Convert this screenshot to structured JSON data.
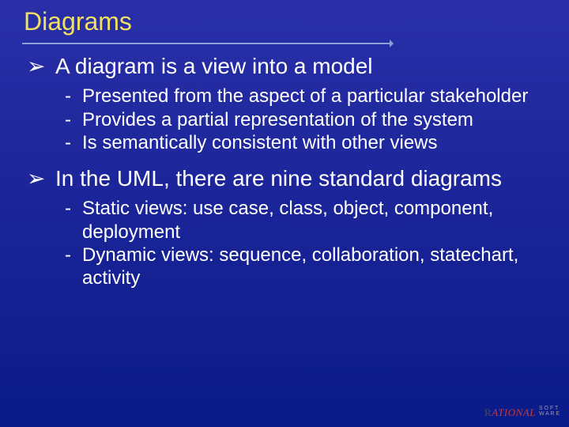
{
  "colors": {
    "bg_top": "#2a2fa8",
    "bg_bottom": "#0a1a88",
    "title": "#f2e060",
    "rule": "#8e9fd8",
    "text": "#ffffff",
    "logo_red": "#c43a3a",
    "logo_lead": "#4a4a4a",
    "logo_sub": "#9a9a9a"
  },
  "layout": {
    "title_fontsize": 32,
    "bullet1_fontsize": 28,
    "bullet2_fontsize": 24,
    "logo_main_fontsize": 13,
    "logo_sub_fontsize": 7,
    "rule_width_pct": 70,
    "rule_arrow_size": 5
  },
  "title": "Diagrams",
  "bullet1_mark": "➢",
  "bullet2_mark": "-",
  "sections": [
    {
      "text": "A diagram is a view into a model",
      "subs": [
        "Presented from the aspect of a particular stakeholder",
        "Provides a partial representation of the system",
        "Is semantically consistent with other views"
      ]
    },
    {
      "text": "In the UML, there are nine standard diagrams",
      "subs": [
        "Static views: use case, class, object, component, deployment",
        "Dynamic views: sequence, collaboration, statechart, activity"
      ]
    }
  ],
  "logo": {
    "lead_char": "R",
    "rest": "ATIONAL",
    "sub1": "S O F T",
    "sub2": "W A R E"
  }
}
